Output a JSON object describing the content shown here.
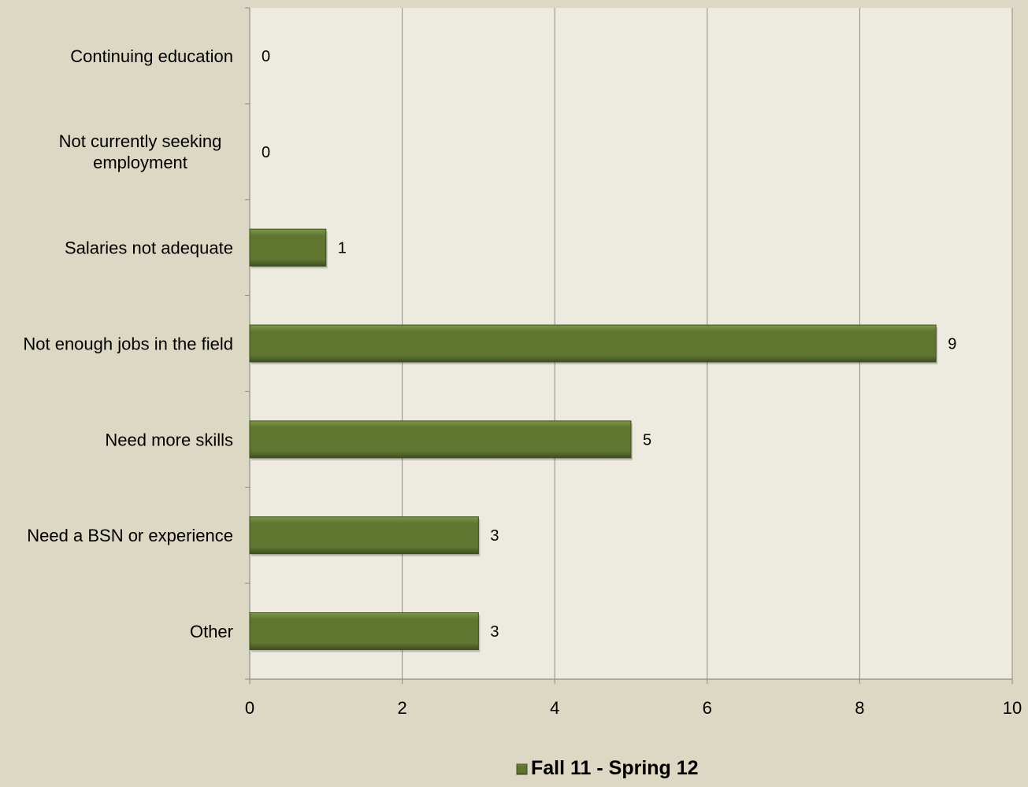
{
  "chart_data": {
    "type": "bar",
    "orientation": "horizontal",
    "categories": [
      "Continuing education",
      "Not currently seeking employment",
      "Salaries not adequate",
      "Not enough jobs in the field",
      "Need more skills",
      "Need a BSN or experience",
      "Other"
    ],
    "category_lines": [
      [
        "Continuing education"
      ],
      [
        "Not currently seeking",
        "employment"
      ],
      [
        "Salaries not adequate"
      ],
      [
        "Not enough jobs in the field"
      ],
      [
        "Need more skills"
      ],
      [
        "Need a BSN or experience"
      ],
      [
        "Other"
      ]
    ],
    "series": [
      {
        "name": "Fall 11 - Spring 12",
        "values": [
          0,
          0,
          1,
          9,
          5,
          3,
          3
        ],
        "color": "#5F7530"
      }
    ],
    "xlim": [
      0,
      10
    ],
    "xticks": [
      0,
      2,
      4,
      6,
      8,
      10
    ],
    "xtick_labels": [
      "0",
      "2",
      "4",
      "6",
      "8",
      "10"
    ],
    "data_labels": [
      "0",
      "0",
      "1",
      "9",
      "5",
      "3",
      "3"
    ],
    "grid": "vertical",
    "legend_position": "bottom",
    "title": "",
    "xlabel": "",
    "ylabel": ""
  },
  "colors": {
    "page_background": "#DDD8C3",
    "plot_background": "#EDEAE0",
    "bar_fill": "#5F7530",
    "bar_highlight": "#7E9848",
    "bar_shadow": "#3E4F1C",
    "gridline": "#8C8C8C"
  }
}
